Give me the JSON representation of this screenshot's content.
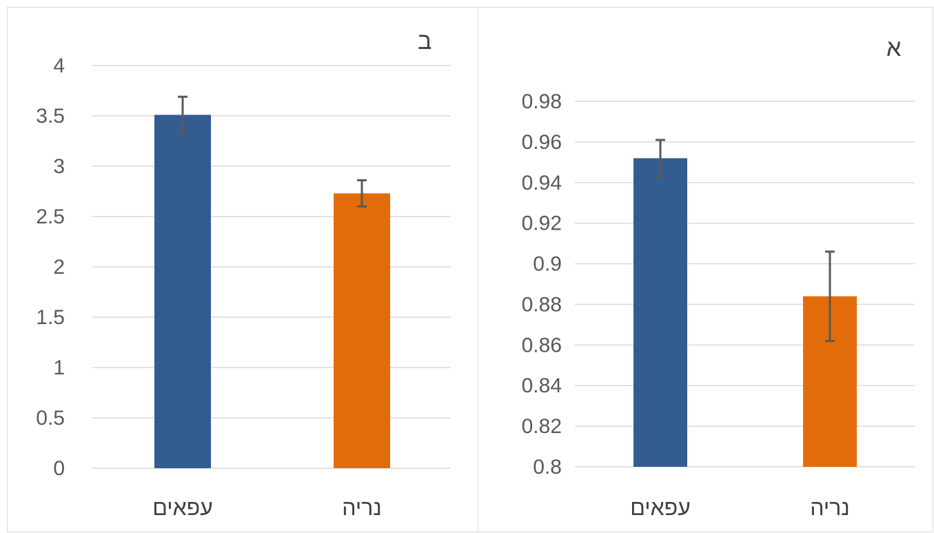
{
  "chart_data": [
    {
      "id": "b",
      "type": "bar",
      "title": "ב",
      "categories": [
        "עפאים",
        "נריה"
      ],
      "values": [
        3.51,
        2.73
      ],
      "error": [
        0.18,
        0.13
      ],
      "colors": [
        "#335c91",
        "#e36c0a"
      ],
      "ylim": [
        0,
        4
      ],
      "yticks": [
        "0",
        "0.5",
        "1",
        "1.5",
        "2",
        "2.5",
        "3",
        "3.5",
        "4"
      ],
      "grid": true,
      "xlabel": "",
      "ylabel": ""
    },
    {
      "id": "a",
      "type": "bar",
      "title": "א",
      "categories": [
        "עפאים",
        "נריה"
      ],
      "values": [
        0.952,
        0.884
      ],
      "error": [
        0.009,
        0.022
      ],
      "colors": [
        "#335c91",
        "#e36c0a"
      ],
      "ylim": [
        0.8,
        0.98
      ],
      "yticks": [
        "0.8",
        "0.82",
        "0.84",
        "0.86",
        "0.88",
        "0.9",
        "0.92",
        "0.94",
        "0.96",
        "0.98"
      ],
      "grid": true,
      "xlabel": "",
      "ylabel": ""
    }
  ]
}
